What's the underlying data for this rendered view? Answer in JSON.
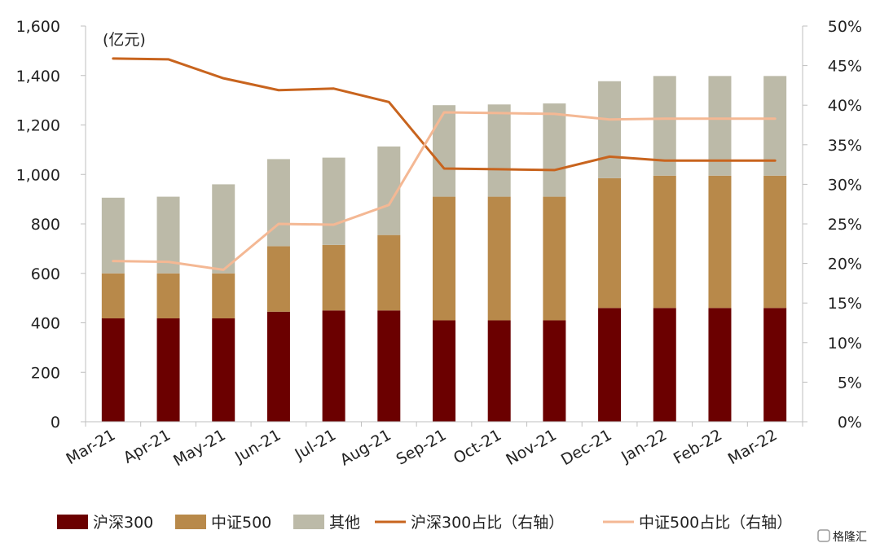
{
  "chart_data": {
    "type": "bar",
    "stacked": true,
    "categories": [
      "Mar-21",
      "Apr-21",
      "May-21",
      "Jun-21",
      "Jul-21",
      "Aug-21",
      "Sep-21",
      "Oct-21",
      "Nov-21",
      "Dec-21",
      "Jan-22",
      "Feb-22",
      "Mar-22"
    ],
    "left_axis": {
      "unit": "(亿元)",
      "ylim": [
        0,
        1600
      ],
      "ticks": [
        "0",
        "200",
        "400",
        "600",
        "800",
        "1,000",
        "1,200",
        "1,400",
        "1,600"
      ]
    },
    "right_axis": {
      "ylim": [
        0,
        50
      ],
      "ticks": [
        "0%",
        "5%",
        "10%",
        "15%",
        "20%",
        "25%",
        "30%",
        "35%",
        "40%",
        "45%",
        "50%"
      ]
    },
    "series": [
      {
        "name": "沪深300",
        "type": "bar",
        "axis": "left",
        "color": "#6b0000",
        "values": [
          418,
          418,
          418,
          445,
          450,
          450,
          410,
          410,
          410,
          460,
          460,
          460,
          460
        ]
      },
      {
        "name": "中证500",
        "type": "bar",
        "axis": "left",
        "color": "#b8894a",
        "values": [
          182,
          182,
          182,
          265,
          265,
          305,
          500,
          500,
          500,
          525,
          535,
          535,
          535
        ]
      },
      {
        "name": "其他",
        "type": "bar",
        "axis": "left",
        "color": "#bcbaa8",
        "values": [
          306,
          310,
          360,
          352,
          353,
          358,
          370,
          373,
          377,
          392,
          403,
          403,
          403
        ]
      },
      {
        "name": "沪深300占比（右轴）",
        "type": "line",
        "axis": "right",
        "color": "#c8641e",
        "values": [
          45.9,
          45.8,
          43.4,
          41.9,
          42.1,
          40.4,
          32.0,
          31.9,
          31.8,
          33.5,
          33.0,
          33.0,
          33.0
        ]
      },
      {
        "name": "中证500占比（右轴）",
        "type": "line",
        "axis": "right",
        "color": "#f4b894",
        "values": [
          20.3,
          20.2,
          19.2,
          25.0,
          24.9,
          27.4,
          39.1,
          39.0,
          38.9,
          38.2,
          38.3,
          38.3,
          38.3
        ]
      }
    ],
    "legend_position": "bottom",
    "grid": false
  },
  "watermark": {
    "text": "格隆汇"
  }
}
